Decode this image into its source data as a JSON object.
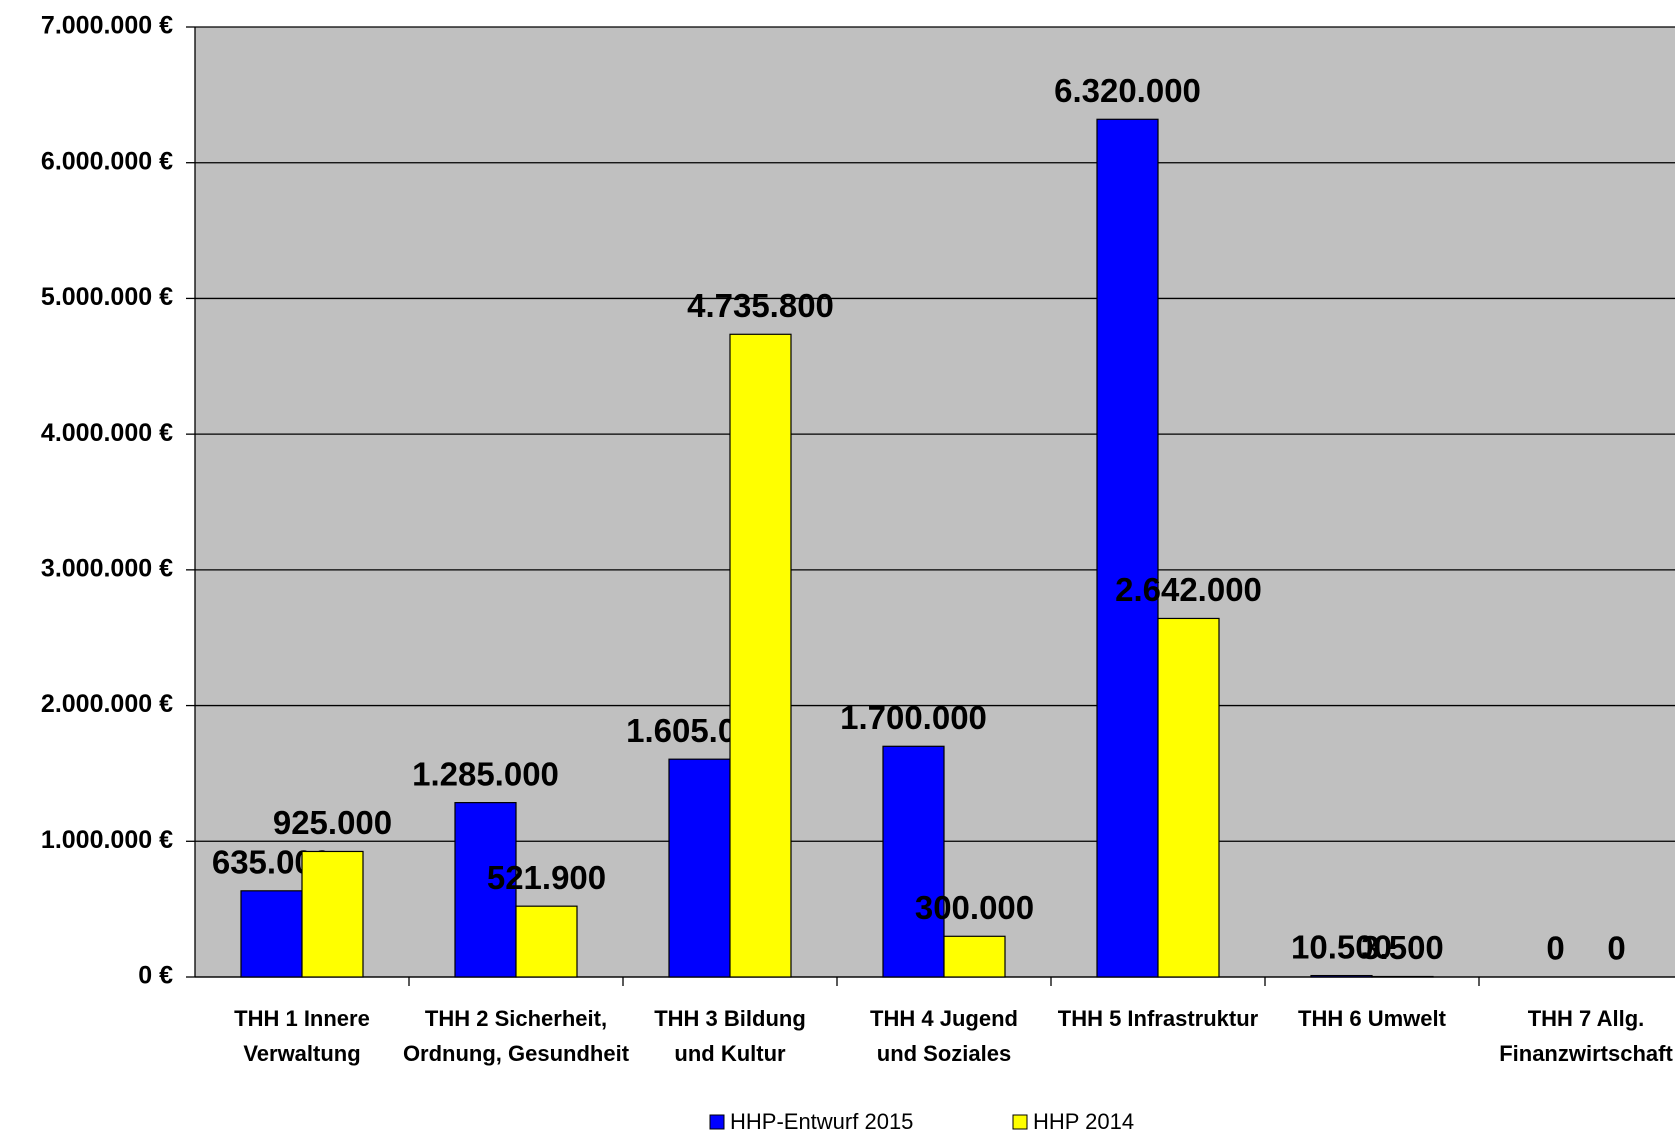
{
  "chart_data": {
    "type": "bar",
    "categories": [
      "THH 1 Innere\nVerwaltung",
      "THH 2 Sicherheit,\nOrdnung, Gesundheit",
      "THH 3 Bildung\nund Kultur",
      "THH 4 Jugend\nund Soziales",
      "THH 5 Infrastruktur",
      "THH 6 Umwelt",
      "THH 7 Allg.\nFinanzwirtschaft"
    ],
    "series": [
      {
        "name": "HHP-Entwurf 2015",
        "color": "#0000ff",
        "values": [
          635000,
          1285000,
          1605000,
          1700000,
          6320000,
          10500,
          0
        ],
        "value_labels": [
          "635.000",
          "1.285.000",
          "1.605.000",
          "1.700.000",
          "6.320.000",
          "10.500",
          "0"
        ]
      },
      {
        "name": "HHP 2014",
        "color": "#ffff00",
        "values": [
          925000,
          521900,
          4735800,
          300000,
          2642000,
          3500,
          0
        ],
        "value_labels": [
          "925.000",
          "521.900",
          "4.735.800",
          "300.000",
          "2.642.000",
          "3.500",
          "0"
        ]
      }
    ],
    "ylim": [
      0,
      7000000
    ],
    "yticks": [
      {
        "value": 0,
        "label": "0 €"
      },
      {
        "value": 1000000,
        "label": "1.000.000 €"
      },
      {
        "value": 2000000,
        "label": "2.000.000 €"
      },
      {
        "value": 3000000,
        "label": "3.000.000 €"
      },
      {
        "value": 4000000,
        "label": "4.000.000 €"
      },
      {
        "value": 5000000,
        "label": "5.000.000 €"
      },
      {
        "value": 6000000,
        "label": "6.000.000 €"
      },
      {
        "value": 7000000,
        "label": "7.000.000 €"
      }
    ],
    "grid": true,
    "legend": "bottom"
  }
}
